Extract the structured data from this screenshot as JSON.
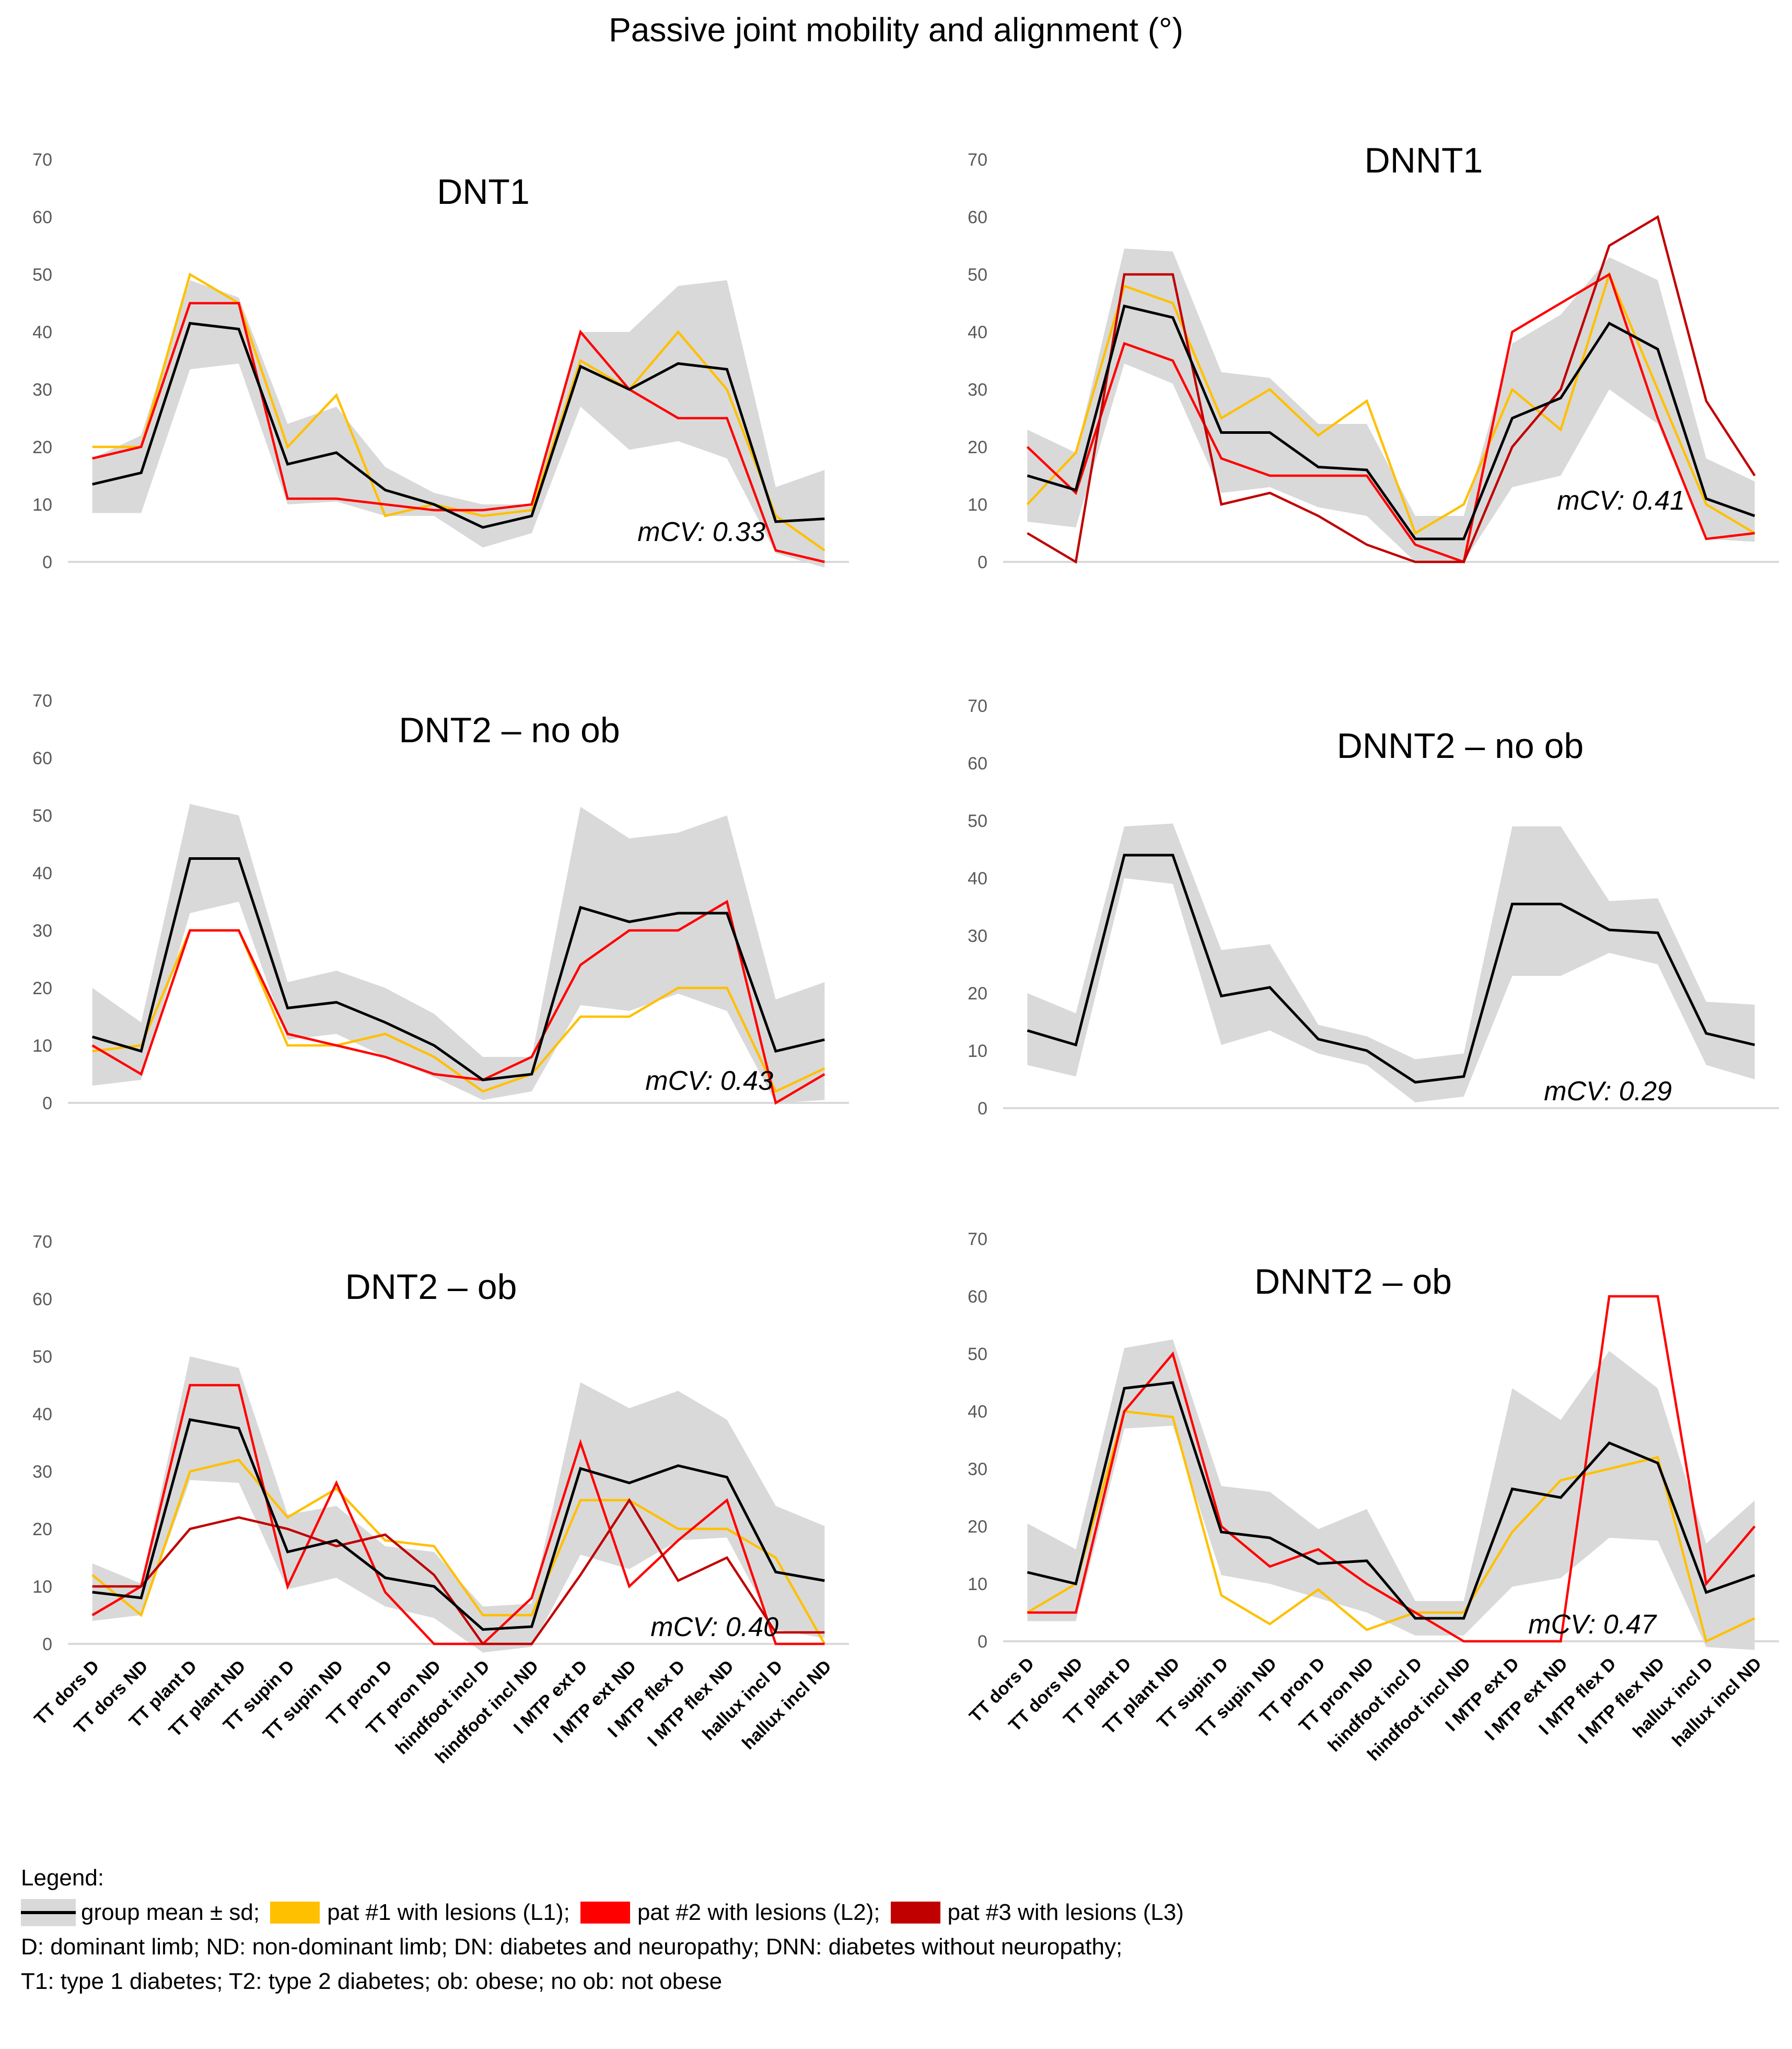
{
  "title": "Passive joint mobility and alignment (°)",
  "colors": {
    "band": "#d9d9d9",
    "mean": "#000000",
    "L1": "#ffc000",
    "L2": "#ff0000",
    "L3": "#c00000",
    "axis": "#d9d9d9"
  },
  "legend": {
    "heading": "Legend:",
    "band_label": "group mean ± sd;",
    "l1_label": "pat #1 with lesions (L1);",
    "l2_label": "pat #2 with lesions (L2);",
    "l3_label": "pat #3 with lesions (L3)",
    "note1": "D: dominant limb; ND: non-dominant limb; DN: diabetes and neuropathy; DNN: diabetes without neuropathy;",
    "note2": "T1: type 1 diabetes; T2: type 2 diabetes; ob: obese; no ob: not obese"
  },
  "chart_data": [
    {
      "type": "line",
      "title": "DNT1",
      "mcv": "mCV: 0.33",
      "ylim": [
        0,
        70
      ],
      "yticks": [
        "0",
        "10",
        "20",
        "30",
        "40",
        "50",
        "60",
        "70"
      ],
      "categories": [
        "TT dors D",
        "TT dors ND",
        "TT plant D",
        "TT plant ND",
        "TT supin D",
        "TT supin ND",
        "TT pron D",
        "TT pron ND",
        "hindfoot incl D",
        "hindfoot incl ND",
        "I MTP ext D",
        "I MTP ext ND",
        "I MTP flex D",
        "I MTP flex ND",
        "hallux incl D",
        "hallux incl ND"
      ],
      "show_xlabels": false,
      "band_low": [
        8.5,
        8.5,
        33.5,
        34.5,
        10,
        10.5,
        8,
        8,
        2.5,
        5,
        27,
        19.5,
        21,
        18,
        1.5,
        -1
      ],
      "band_high": [
        18,
        22,
        49,
        46,
        24,
        27,
        16.5,
        12,
        10,
        10,
        40,
        40,
        48,
        49,
        13,
        16
      ],
      "series": [
        {
          "name": "group mean",
          "key": "mean",
          "values": [
            13.5,
            15.5,
            41.5,
            40.5,
            17,
            19,
            12.5,
            10,
            6,
            8,
            34,
            30,
            34.5,
            33.5,
            7,
            7.5
          ]
        },
        {
          "name": "L1",
          "key": "L1",
          "values": [
            20,
            20,
            50,
            45,
            20,
            29,
            8,
            10,
            8,
            9,
            35,
            30,
            40,
            30,
            8,
            2
          ]
        },
        {
          "name": "L2",
          "key": "L2",
          "values": [
            18,
            20,
            45,
            45,
            11,
            11,
            10,
            9,
            9,
            10,
            40,
            30,
            25,
            25,
            2,
            0
          ]
        }
      ]
    },
    {
      "type": "line",
      "title": "DNNT1",
      "mcv": "mCV: 0.41",
      "ylim": [
        0,
        70
      ],
      "yticks": [
        "0",
        "10",
        "20",
        "30",
        "40",
        "50",
        "60",
        "70"
      ],
      "categories": [
        "TT dors D",
        "TT dors ND",
        "TT plant D",
        "TT plant ND",
        "TT supin D",
        "TT supin ND",
        "TT pron D",
        "TT pron ND",
        "hindfoot incl D",
        "hindfoot incl ND",
        "I MTP ext D",
        "I MTP ext ND",
        "I MTP flex D",
        "I MTP flex ND",
        "hallux incl D",
        "hallux incl ND"
      ],
      "show_xlabels": false,
      "band_low": [
        7,
        6,
        34.5,
        31,
        12,
        13,
        9.5,
        8,
        0,
        0,
        13,
        15,
        30,
        24,
        4,
        3.5
      ],
      "band_high": [
        23,
        19,
        54.5,
        54,
        33,
        32,
        24,
        24,
        8,
        8,
        38,
        43,
        53,
        49,
        18,
        14
      ],
      "series": [
        {
          "name": "group mean",
          "key": "mean",
          "values": [
            15,
            12.5,
            44.5,
            42.5,
            22.5,
            22.5,
            16.5,
            16,
            4,
            4,
            25,
            28.5,
            41.5,
            37,
            11,
            8
          ]
        },
        {
          "name": "L1",
          "key": "L1",
          "values": [
            10,
            19,
            48,
            45,
            25,
            30,
            22,
            28,
            5,
            10,
            30,
            23,
            50,
            30,
            10,
            5
          ]
        },
        {
          "name": "L2",
          "key": "L2",
          "values": [
            20,
            12,
            38,
            35,
            18,
            15,
            15,
            15,
            3,
            0,
            40,
            45,
            50,
            25,
            4,
            5
          ]
        },
        {
          "name": "L3",
          "key": "L3",
          "values": [
            5,
            0,
            50,
            50,
            10,
            12,
            8,
            3,
            0,
            0,
            20,
            30,
            55,
            60,
            28,
            15
          ]
        }
      ]
    },
    {
      "type": "line",
      "title": "DNT2 – no ob",
      "mcv": "mCV: 0.43",
      "ylim": [
        0,
        70
      ],
      "yticks": [
        "0",
        "10",
        "20",
        "30",
        "40",
        "50",
        "60",
        "70"
      ],
      "categories": [
        "TT dors D",
        "TT dors ND",
        "TT plant D",
        "TT plant ND",
        "TT supin D",
        "TT supin ND",
        "TT pron D",
        "TT pron ND",
        "hindfoot incl D",
        "hindfoot incl ND",
        "I MTP ext D",
        "I MTP ext ND",
        "I MTP flex D",
        "I MTP flex ND",
        "hallux incl D",
        "hallux incl ND"
      ],
      "show_xlabels": false,
      "band_low": [
        3,
        4,
        33,
        35,
        11,
        12,
        8,
        4.5,
        0.5,
        2,
        17,
        16,
        19,
        16,
        0,
        0.5
      ],
      "band_high": [
        20,
        14,
        52,
        50,
        21,
        23,
        20,
        15.5,
        8,
        8,
        51.5,
        46,
        47,
        50,
        18,
        21
      ],
      "series": [
        {
          "name": "group mean",
          "key": "mean",
          "values": [
            11.5,
            9,
            42.5,
            42.5,
            16.5,
            17.5,
            14,
            10,
            4,
            5,
            34,
            31.5,
            33,
            33,
            9,
            11
          ]
        },
        {
          "name": "L1",
          "key": "L1",
          "values": [
            9,
            10,
            30,
            30,
            10,
            10,
            12,
            8,
            2,
            5,
            15,
            15,
            20,
            20,
            2,
            6
          ]
        },
        {
          "name": "L2",
          "key": "L2",
          "values": [
            10,
            5,
            30,
            30,
            12,
            10,
            8,
            5,
            4,
            8,
            24,
            30,
            30,
            35,
            0,
            5
          ]
        }
      ]
    },
    {
      "type": "line",
      "title": "DNNT2 – no ob",
      "mcv": "mCV: 0.29",
      "ylim": [
        0,
        70
      ],
      "yticks": [
        "0",
        "10",
        "20",
        "30",
        "40",
        "50",
        "60",
        "70"
      ],
      "categories": [
        "TT dors D",
        "TT dors ND",
        "TT plant D",
        "TT plant ND",
        "TT supin D",
        "TT supin ND",
        "TT pron D",
        "TT pron ND",
        "hindfoot incl D",
        "hindfoot incl ND",
        "I MTP ext D",
        "I MTP ext ND",
        "I MTP flex D",
        "I MTP flex ND",
        "hallux incl D",
        "hallux incl ND"
      ],
      "show_xlabels": false,
      "band_low": [
        7.5,
        5.5,
        40,
        39,
        11,
        13.5,
        9.5,
        7.5,
        1,
        2,
        23,
        23,
        27,
        25,
        7.5,
        5
      ],
      "band_high": [
        20,
        16.5,
        49,
        49.5,
        27.5,
        28.5,
        14.5,
        12.5,
        8.5,
        9.5,
        49,
        49,
        36,
        36.5,
        18.5,
        18
      ],
      "series": [
        {
          "name": "group mean",
          "key": "mean",
          "values": [
            13.5,
            11,
            44,
            44,
            19.5,
            21,
            12,
            10,
            4.5,
            5.5,
            35.5,
            35.5,
            31,
            30.5,
            13,
            11
          ]
        }
      ]
    },
    {
      "type": "line",
      "title": "DNT2 – ob",
      "mcv": "mCV: 0.40",
      "ylim": [
        0,
        70
      ],
      "yticks": [
        "0",
        "10",
        "20",
        "30",
        "40",
        "50",
        "60",
        "70"
      ],
      "categories": [
        "TT dors D",
        "TT dors ND",
        "TT plant D",
        "TT plant ND",
        "TT supin D",
        "TT supin ND",
        "TT pron D",
        "TT pron ND",
        "hindfoot incl D",
        "hindfoot incl ND",
        "I MTP ext D",
        "I MTP ext ND",
        "I MTP flex D",
        "I MTP flex ND",
        "hallux incl D",
        "hallux incl ND"
      ],
      "show_xlabels": true,
      "band_low": [
        4,
        5,
        28.5,
        28,
        9.5,
        11.5,
        6.5,
        4.5,
        -1.5,
        -0.5,
        15.5,
        13,
        18,
        18.5,
        2.5,
        1
      ],
      "band_high": [
        14,
        10.5,
        50,
        48,
        22.5,
        24,
        17,
        16,
        6.5,
        7,
        45.5,
        41,
        44,
        39,
        24,
        20.5
      ],
      "series": [
        {
          "name": "group mean",
          "key": "mean",
          "values": [
            9,
            8,
            39,
            37.5,
            16,
            18,
            11.5,
            10,
            2.5,
            3,
            30.5,
            28,
            31,
            29,
            12.5,
            11
          ]
        },
        {
          "name": "L1",
          "key": "L1",
          "values": [
            12,
            5,
            30,
            32,
            22,
            27,
            18,
            17,
            5,
            5,
            25,
            25,
            20,
            20,
            15,
            0
          ]
        },
        {
          "name": "L2",
          "key": "L2",
          "values": [
            5,
            10,
            45,
            45,
            10,
            28,
            9,
            0,
            0,
            8,
            35,
            10,
            18,
            25,
            0,
            0
          ]
        },
        {
          "name": "L3",
          "key": "L3",
          "values": [
            10,
            10,
            20,
            22,
            20,
            17,
            19,
            12,
            0,
            0,
            12,
            25,
            11,
            15,
            2,
            2
          ]
        }
      ]
    },
    {
      "type": "line",
      "title": "DNNT2 – ob",
      "mcv": "mCV: 0.47",
      "ylim": [
        0,
        70
      ],
      "yticks": [
        "0",
        "10",
        "20",
        "30",
        "40",
        "50",
        "60",
        "70"
      ],
      "categories": [
        "TT dors D",
        "TT dors ND",
        "TT plant D",
        "TT plant ND",
        "TT supin D",
        "TT supin ND",
        "TT pron D",
        "TT pron ND",
        "hindfoot incl D",
        "hindfoot incl ND",
        "I MTP ext D",
        "I MTP ext ND",
        "I MTP flex D",
        "I MTP flex ND",
        "hallux incl D",
        "hallux incl ND"
      ],
      "show_xlabels": true,
      "band_low": [
        3.5,
        3.5,
        37,
        37.5,
        11.5,
        10,
        7.5,
        5,
        1,
        1,
        9.5,
        11,
        18,
        17.5,
        -1,
        -1.5
      ],
      "band_high": [
        20.5,
        16,
        51,
        52.5,
        27,
        26,
        19.5,
        23,
        7,
        7,
        44,
        38.5,
        50.5,
        44,
        17,
        24.5
      ],
      "series": [
        {
          "name": "group mean",
          "key": "mean",
          "values": [
            12,
            10,
            44,
            45,
            19,
            18,
            13.5,
            14,
            4,
            4,
            26.5,
            25,
            34.5,
            31,
            8.5,
            11.5
          ]
        },
        {
          "name": "L1",
          "key": "L1",
          "values": [
            5,
            10,
            40,
            39,
            8,
            3,
            9,
            2,
            5,
            5,
            19,
            28,
            30,
            32,
            0,
            4
          ]
        },
        {
          "name": "L2",
          "key": "L2",
          "values": [
            5,
            5,
            40,
            50,
            20,
            13,
            16,
            10,
            5,
            0,
            0,
            0,
            60,
            60,
            10,
            20
          ]
        }
      ]
    }
  ]
}
